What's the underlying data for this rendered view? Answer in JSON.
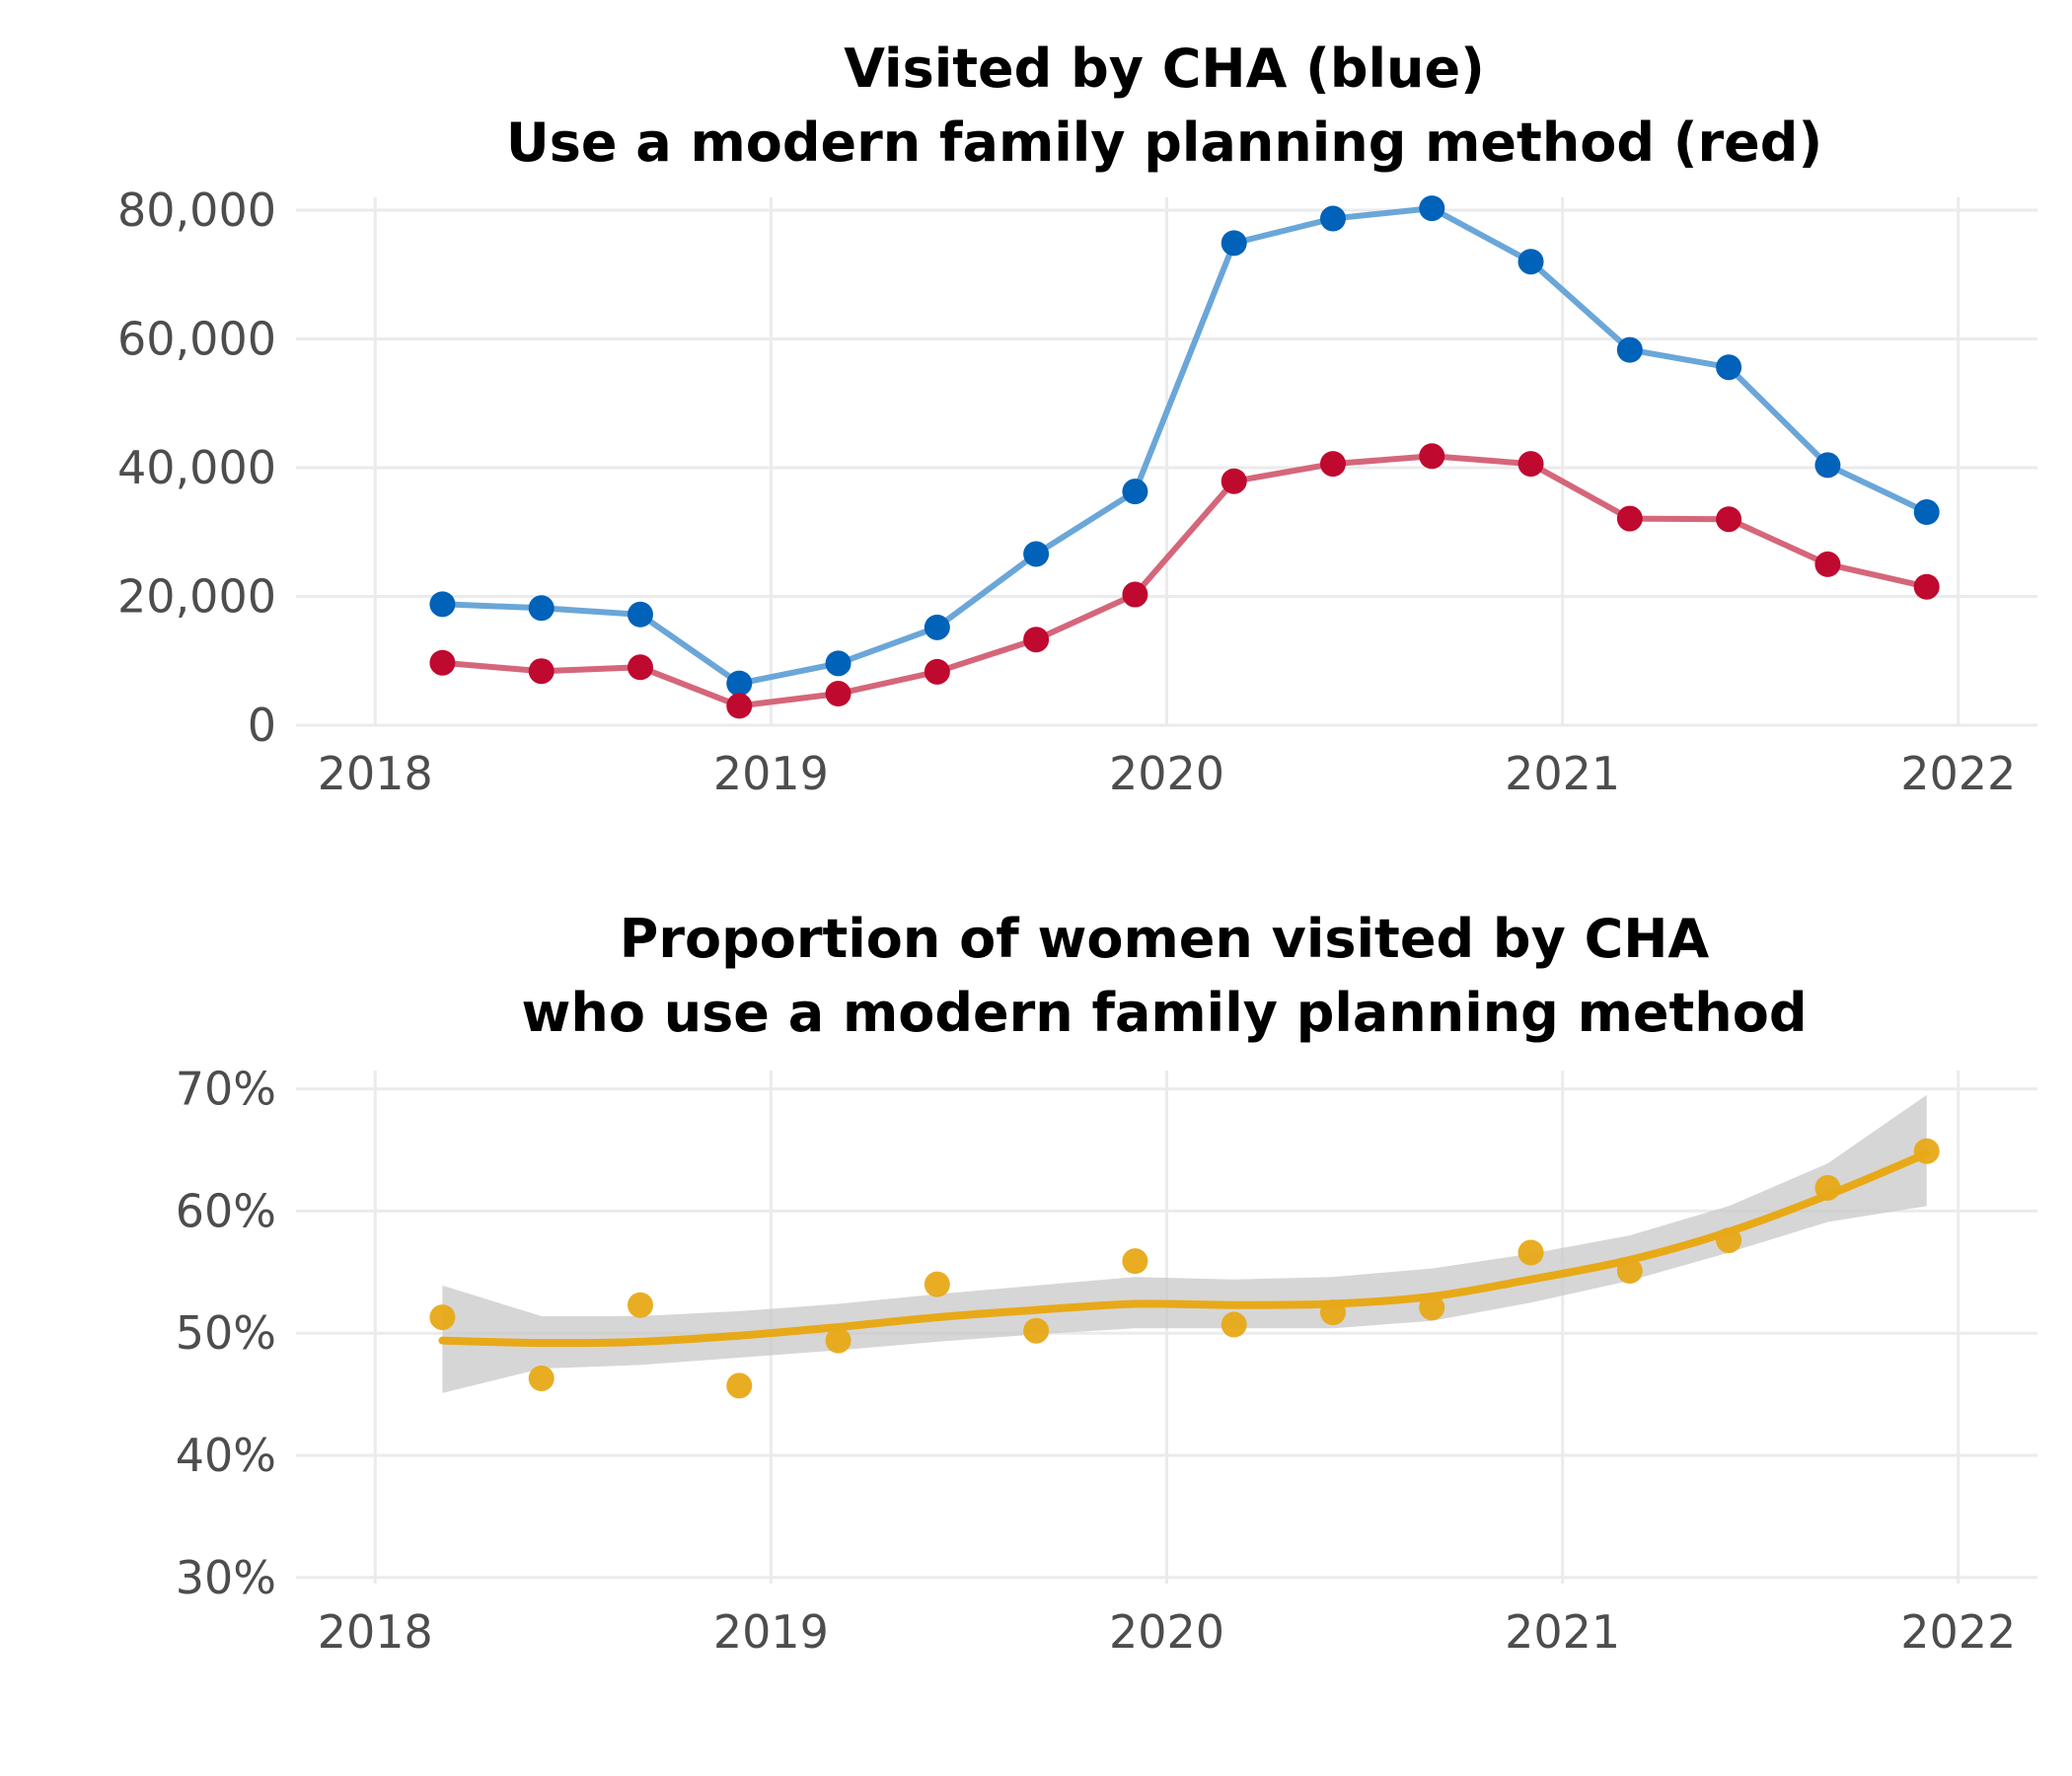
{
  "chart_data": [
    {
      "type": "line",
      "title_lines": [
        "Visited by CHA (blue)",
        "Use a modern family planning method (red)"
      ],
      "x": [
        2018.17,
        2018.42,
        2018.67,
        2018.92,
        2019.17,
        2019.42,
        2019.67,
        2019.92,
        2020.17,
        2020.42,
        2020.67,
        2020.92,
        2021.17,
        2021.42,
        2021.67,
        2021.92
      ],
      "series": [
        {
          "color": "#0062b8",
          "line_color": "#6aa6d8",
          "values": [
            18800,
            18200,
            17200,
            6500,
            9600,
            15200,
            26600,
            36300,
            74900,
            78700,
            80300,
            72000,
            58300,
            55600,
            40400,
            33100
          ]
        },
        {
          "color": "#c0092f",
          "line_color": "#d5667a",
          "values": [
            9700,
            8400,
            9000,
            3000,
            4900,
            8300,
            13300,
            20300,
            37900,
            40600,
            41800,
            40600,
            32100,
            32000,
            25000,
            21500
          ]
        }
      ],
      "xlim": [
        2017.8,
        2022.2
      ],
      "ylim": [
        0,
        82000
      ],
      "x_ticks": [
        2018,
        2019,
        2020,
        2021,
        2022
      ],
      "x_tick_labels": [
        "2018",
        "2019",
        "2020",
        "2021",
        "2022"
      ],
      "y_ticks": [
        0,
        20000,
        40000,
        60000,
        80000
      ],
      "y_tick_labels": [
        "0",
        "20,000",
        "40,000",
        "60,000",
        "80,000"
      ],
      "grid": true
    },
    {
      "type": "scatter",
      "title_lines": [
        "Proportion of women visited by CHA",
        "who use a modern family planning method"
      ],
      "x": [
        2018.17,
        2018.42,
        2018.67,
        2018.92,
        2019.17,
        2019.42,
        2019.67,
        2019.92,
        2020.17,
        2020.42,
        2020.67,
        2020.92,
        2021.17,
        2021.42,
        2021.67,
        2021.92
      ],
      "values": [
        51.3,
        46.3,
        52.3,
        45.7,
        49.4,
        54.0,
        50.2,
        55.9,
        50.7,
        51.7,
        52.1,
        56.6,
        55.1,
        57.6,
        61.9,
        64.9
      ],
      "point_color": "#e8a918",
      "smooth": {
        "color": "#e8a918",
        "band_color": "#c8c8c8",
        "values": [
          49.4,
          49.2,
          49.3,
          49.8,
          50.5,
          51.3,
          51.9,
          52.4,
          52.3,
          52.4,
          53.0,
          54.4,
          56.0,
          58.3,
          61.3,
          64.7
        ],
        "lower": [
          45.1,
          47.1,
          47.4,
          48.0,
          48.6,
          49.3,
          49.9,
          50.4,
          50.4,
          50.4,
          51.0,
          52.5,
          54.3,
          56.6,
          59.1,
          60.4
        ],
        "upper": [
          53.9,
          51.4,
          51.4,
          51.8,
          52.4,
          53.2,
          53.9,
          54.6,
          54.4,
          54.6,
          55.3,
          56.5,
          58.0,
          60.4,
          63.9,
          69.5
        ]
      },
      "xlim": [
        2017.8,
        2022.2
      ],
      "ylim": [
        29.5,
        71.5
      ],
      "x_ticks": [
        2018,
        2019,
        2020,
        2021,
        2022
      ],
      "x_tick_labels": [
        "2018",
        "2019",
        "2020",
        "2021",
        "2022"
      ],
      "y_ticks": [
        30,
        40,
        50,
        60,
        70
      ],
      "y_tick_labels": [
        "30%",
        "40%",
        "50%",
        "60%",
        "70%"
      ],
      "grid": true
    }
  ]
}
